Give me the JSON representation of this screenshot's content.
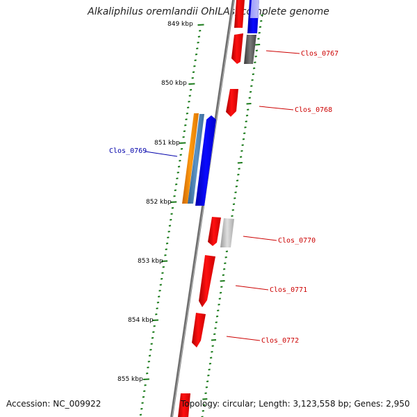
{
  "title": "Alkaliphilus oremlandii OhILAs, complete genome",
  "footer": {
    "accession": "Accession: NC_009922",
    "topology": "Topology: circular; Length: 3,123,558 bp; Genes: 2,950"
  },
  "scale_labels": [
    "849 kbp",
    "850 kbp",
    "851 kbp",
    "852 kbp",
    "853 kbp",
    "854 kbp",
    "855 kbp"
  ],
  "genes": [
    {
      "label": "Clos_0767",
      "color": "#cc0000"
    },
    {
      "label": "Clos_0768",
      "color": "#cc0000"
    },
    {
      "label": "Clos_0769",
      "color": "#0000aa"
    },
    {
      "label": "Clos_0770",
      "color": "#cc0000"
    },
    {
      "label": "Clos_0771",
      "color": "#cc0000"
    },
    {
      "label": "Clos_0772",
      "color": "#cc0000"
    }
  ],
  "colors": {
    "backbone": "#808080",
    "ticks": "#1a7a1a",
    "feature_red": "#ff0000",
    "feature_blue": "#0000ff",
    "feature_orange": "#ff8c00",
    "feature_steel": "#4682b4",
    "feature_gray": "#555555",
    "feature_lightgray": "#b0b0b0"
  }
}
